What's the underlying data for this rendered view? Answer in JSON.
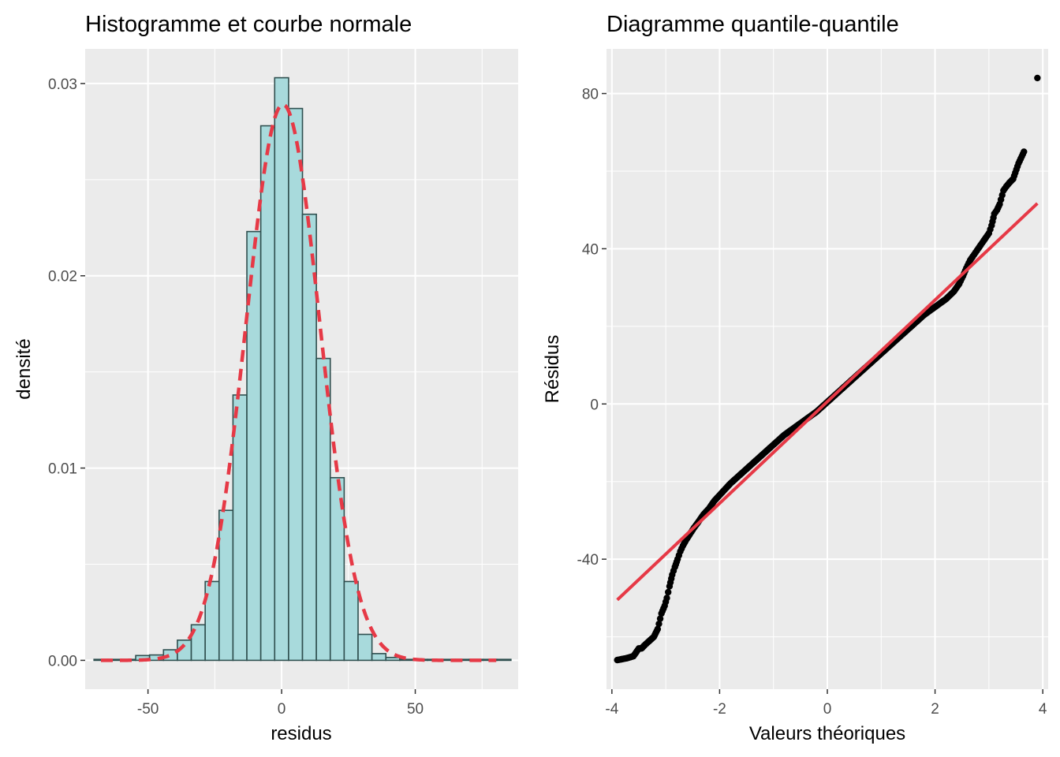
{
  "colors": {
    "panel_bg": "#ebebeb",
    "grid": "#ffffff",
    "bar_fill": "#a8dadc",
    "bar_stroke": "#2f4f4f",
    "curve": "#e63946",
    "point": "#000000",
    "tick_text": "#4d4d4d"
  },
  "chart_data": [
    {
      "type": "bar",
      "title": "Histogramme et courbe normale",
      "xlabel": "residus",
      "ylabel": "densité",
      "xlim": [
        -73.5,
        88.5
      ],
      "ylim": [
        -0.0015,
        0.0318
      ],
      "x_ticks": [
        -50,
        0,
        50
      ],
      "x_tick_labels": [
        "-50",
        "0",
        "50"
      ],
      "y_ticks": [
        0.0,
        0.01,
        0.02,
        0.03
      ],
      "y_tick_labels": [
        "0.00",
        "0.01",
        "0.02",
        "0.03"
      ],
      "grid": true,
      "bin_width": 5.2,
      "bin_centers": [
        -67.6,
        -62.4,
        -57.2,
        -52.0,
        -46.8,
        -41.6,
        -36.4,
        -31.2,
        -26.0,
        -20.8,
        -15.6,
        -10.4,
        -5.2,
        0.0,
        5.2,
        10.4,
        15.6,
        20.8,
        26.0,
        31.2,
        36.4,
        41.6,
        46.8,
        52.0,
        57.2,
        62.4,
        67.6,
        72.8,
        78.0,
        83.2
      ],
      "values": [
        5e-05,
        5e-05,
        5e-05,
        0.00025,
        0.00028,
        0.00055,
        0.00105,
        0.00185,
        0.0041,
        0.0078,
        0.0138,
        0.0223,
        0.0278,
        0.0303,
        0.0287,
        0.0232,
        0.0157,
        0.0095,
        0.0041,
        0.00135,
        0.00035,
        0.00015,
        5e-05,
        5e-05,
        5e-05,
        5e-05,
        5e-05,
        5e-05,
        5e-05,
        5e-05
      ],
      "overlay": {
        "type": "line",
        "style": "dashed",
        "distribution": "normal",
        "mean": 0.5,
        "sd": 13.8,
        "x_range": [
          -67.6,
          80.3
        ]
      }
    },
    {
      "type": "scatter",
      "title": "Diagramme quantile-quantile",
      "xlabel": "Valeurs théoriques",
      "ylabel": "Résidus",
      "xlim": [
        -4.1,
        4.1
      ],
      "ylim": [
        -73.5,
        91.5
      ],
      "x_ticks": [
        -4,
        -2,
        0,
        2,
        4
      ],
      "x_tick_labels": [
        "-4",
        "-2",
        "0",
        "2",
        "4"
      ],
      "y_ticks": [
        -40,
        0,
        40,
        80
      ],
      "y_tick_labels": [
        "-40",
        "0",
        "40",
        "80"
      ],
      "grid": true,
      "reference_line": {
        "intercept": 0.6,
        "slope": 13.1,
        "x_range": [
          -3.9,
          3.9
        ]
      },
      "points": {
        "x": [
          -3.9,
          -3.72,
          -3.6,
          -3.5,
          -3.45,
          -3.38,
          -3.3,
          -3.22,
          -3.15,
          -3.08,
          -3.02,
          -2.98,
          -2.93,
          -2.88,
          -2.83,
          -2.78,
          -2.73,
          -2.68,
          -2.62,
          -2.55,
          -2.48,
          -2.4,
          -2.3,
          -2.2,
          -2.1,
          -2.0,
          -1.9,
          -1.8,
          -1.6,
          -1.4,
          -1.2,
          -1.0,
          -0.8,
          -0.6,
          -0.4,
          -0.2,
          0.0,
          0.2,
          0.4,
          0.6,
          0.8,
          1.0,
          1.2,
          1.4,
          1.6,
          1.8,
          2.0,
          2.2,
          2.35,
          2.45,
          2.52,
          2.58,
          2.65,
          2.7,
          2.75,
          2.8,
          2.85,
          2.9,
          2.95,
          3.0,
          3.05,
          3.1,
          3.15,
          3.2,
          3.27,
          3.32,
          3.38,
          3.45,
          3.55,
          3.65,
          3.9
        ],
        "y": [
          -66,
          -65.5,
          -65,
          -63,
          -63,
          -62,
          -61,
          -60,
          -58,
          -54,
          -52,
          -50,
          -47,
          -44,
          -42,
          -40,
          -38,
          -36.5,
          -35,
          -33.5,
          -32,
          -30.5,
          -28.5,
          -27,
          -25,
          -23.5,
          -22,
          -20.5,
          -18,
          -15.5,
          -13,
          -10.5,
          -8,
          -6,
          -4,
          -2,
          0.5,
          3,
          5.5,
          8,
          10.5,
          13,
          15.5,
          18,
          20.5,
          23,
          25,
          27,
          29,
          31,
          33,
          35,
          37,
          38,
          39,
          40,
          41,
          42,
          43,
          44,
          46,
          49,
          50,
          51.5,
          55,
          56,
          57,
          58,
          62,
          65,
          84
        ]
      }
    }
  ]
}
